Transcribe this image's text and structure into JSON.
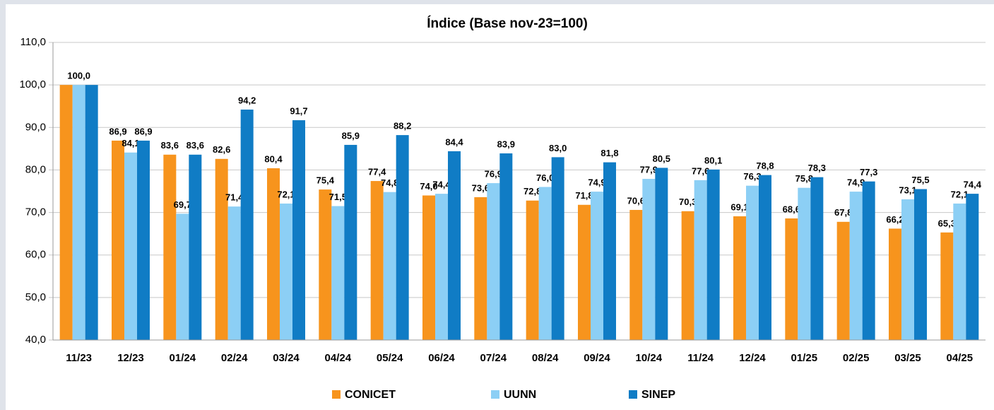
{
  "chart_data": {
    "type": "bar",
    "title": "Índice (Base nov-23=100)",
    "categories": [
      "11/23",
      "12/23",
      "01/24",
      "02/24",
      "03/24",
      "04/24",
      "05/24",
      "06/24",
      "07/24",
      "08/24",
      "09/24",
      "10/24",
      "11/24",
      "12/24",
      "01/25",
      "02/25",
      "03/25",
      "04/25"
    ],
    "series": [
      {
        "name": "CONICET",
        "color": "#f7941d",
        "values": [
          100,
          86.9,
          83.6,
          82.6,
          80.4,
          75.4,
          77.4,
          74.0,
          73.6,
          72.8,
          71.8,
          70.6,
          70.3,
          69.1,
          68.6,
          67.8,
          66.2,
          65.3
        ],
        "value_labels": [
          null,
          "86,9",
          "83,6",
          "82,6",
          "80,4",
          "75,4",
          "77,4",
          "74,0",
          "73,6",
          "72,8",
          "71,8",
          "70,6",
          "70,3",
          "69,1",
          "68,6",
          "67,8",
          "66,2",
          "65,3"
        ]
      },
      {
        "name": "UUNN",
        "color": "#8ccff5",
        "values": [
          100,
          84.1,
          69.7,
          71.4,
          72.1,
          71.5,
          74.8,
          74.4,
          76.9,
          76.0,
          74.9,
          77.9,
          77.6,
          76.3,
          75.8,
          74.9,
          73.1,
          72.1
        ],
        "value_labels": [
          "100,0",
          "84,1",
          "69,7",
          "71,4",
          "72,1",
          "71,5",
          "74,8",
          "74,4",
          "76,9",
          "76,0",
          "74,9",
          "77,9",
          "77,6",
          "76,3",
          "75,8",
          "74,9",
          "73,1",
          "72,1"
        ]
      },
      {
        "name": "SINEP",
        "color": "#107cc5",
        "values": [
          100,
          86.9,
          83.6,
          94.2,
          91.7,
          85.9,
          88.2,
          84.4,
          83.9,
          83.0,
          81.8,
          80.5,
          80.1,
          78.8,
          78.3,
          77.3,
          75.5,
          74.4
        ],
        "value_labels": [
          null,
          "86,9",
          "83,6",
          "94,2",
          "91,7",
          "85,9",
          "88,2",
          "84,4",
          "83,9",
          "83,0",
          "81,8",
          "80,5",
          "80,1",
          "78,8",
          "78,3",
          "77,3",
          "75,5",
          "74,4"
        ]
      }
    ],
    "ylim": [
      40,
      110
    ],
    "yticks": [
      {
        "value": 40,
        "label": "40,0"
      },
      {
        "value": 50,
        "label": "50,0"
      },
      {
        "value": 60,
        "label": "60,0"
      },
      {
        "value": 70,
        "label": "70,0"
      },
      {
        "value": 80,
        "label": "80,0"
      },
      {
        "value": 90,
        "label": "90,0"
      },
      {
        "value": 100,
        "label": "100,0"
      },
      {
        "value": 110,
        "label": "110,0"
      }
    ],
    "grid": true
  }
}
